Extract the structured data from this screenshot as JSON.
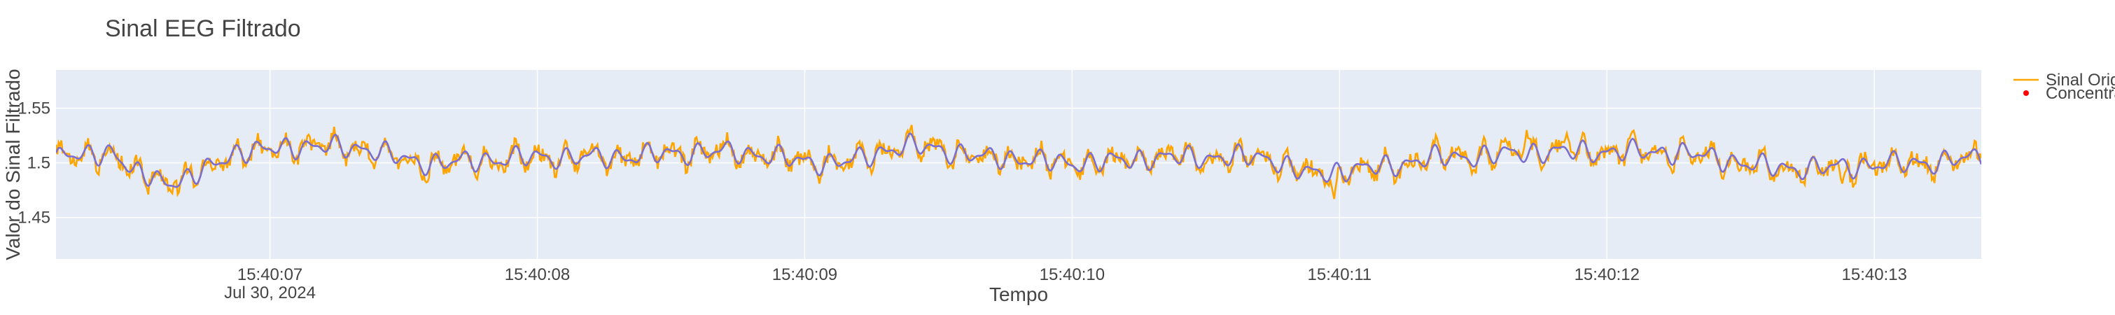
{
  "chart_data": {
    "type": "line",
    "title": "Sinal EEG Filtrado",
    "xlabel": "Tempo",
    "ylabel": "Valor do Sinal Filtrado",
    "x_start": "2024-07-30 15:40:06.200",
    "x_end": "2024-07-30 15:40:13.400",
    "x_ticks": [
      {
        "time": "15:40:07",
        "date": "Jul 30, 2024"
      },
      {
        "time": "15:40:08",
        "date": ""
      },
      {
        "time": "15:40:09",
        "date": ""
      },
      {
        "time": "15:40:10",
        "date": ""
      },
      {
        "time": "15:40:11",
        "date": ""
      },
      {
        "time": "15:40:12",
        "date": ""
      },
      {
        "time": "15:40:13",
        "date": ""
      }
    ],
    "y_ticks": [
      "1.45",
      "1.5",
      "1.55"
    ],
    "ylim": [
      1.412,
      1.585
    ],
    "grid": true,
    "legend_position": "top-right",
    "series": [
      {
        "name": "Sinal Original",
        "color": "#ffa500",
        "mode": "lines",
        "key_points": [
          {
            "t": 0.0,
            "v": 1.505
          },
          {
            "t": 0.2,
            "v": 1.51
          },
          {
            "t": 0.3,
            "v": 1.49
          },
          {
            "t": 0.45,
            "v": 1.483
          },
          {
            "t": 0.7,
            "v": 1.51
          },
          {
            "t": 0.9,
            "v": 1.515
          },
          {
            "t": 1.1,
            "v": 1.514
          },
          {
            "t": 1.4,
            "v": 1.5
          },
          {
            "t": 1.8,
            "v": 1.505
          },
          {
            "t": 2.0,
            "v": 1.505
          },
          {
            "t": 2.5,
            "v": 1.51
          },
          {
            "t": 2.9,
            "v": 1.5
          },
          {
            "t": 3.2,
            "v": 1.515
          },
          {
            "t": 3.5,
            "v": 1.505
          },
          {
            "t": 3.8,
            "v": 1.5
          },
          {
            "t": 4.2,
            "v": 1.505
          },
          {
            "t": 4.5,
            "v": 1.505
          },
          {
            "t": 4.7,
            "v": 1.49
          },
          {
            "t": 4.9,
            "v": 1.495
          },
          {
            "t": 5.2,
            "v": 1.505
          },
          {
            "t": 5.6,
            "v": 1.51
          },
          {
            "t": 6.0,
            "v": 1.51
          },
          {
            "t": 6.5,
            "v": 1.495
          },
          {
            "t": 7.0,
            "v": 1.5
          },
          {
            "t": 7.2,
            "v": 1.505
          }
        ],
        "extra_points": [
          {
            "t": 4.78,
            "v": 1.467
          },
          {
            "t": 5.42,
            "v": 1.522
          },
          {
            "t": 5.5,
            "v": 1.53
          },
          {
            "t": 5.65,
            "v": 1.527
          },
          {
            "t": 6.68,
            "v": 1.481
          }
        ]
      },
      {
        "name": "Concentrado",
        "color": "#ff0000",
        "mode": "markers",
        "key_points": []
      },
      {
        "name": "",
        "color": "#7a6fd0",
        "mode": "lines",
        "key_points": [
          {
            "t": 0.0,
            "v": 1.505
          },
          {
            "t": 0.2,
            "v": 1.51
          },
          {
            "t": 0.3,
            "v": 1.49
          },
          {
            "t": 0.45,
            "v": 1.483
          },
          {
            "t": 0.7,
            "v": 1.51
          },
          {
            "t": 0.9,
            "v": 1.515
          },
          {
            "t": 1.1,
            "v": 1.514
          },
          {
            "t": 1.4,
            "v": 1.5
          },
          {
            "t": 1.8,
            "v": 1.505
          },
          {
            "t": 2.0,
            "v": 1.505
          },
          {
            "t": 2.5,
            "v": 1.51
          },
          {
            "t": 2.9,
            "v": 1.5
          },
          {
            "t": 3.2,
            "v": 1.515
          },
          {
            "t": 3.5,
            "v": 1.505
          },
          {
            "t": 3.8,
            "v": 1.5
          },
          {
            "t": 4.2,
            "v": 1.505
          },
          {
            "t": 4.5,
            "v": 1.505
          },
          {
            "t": 4.7,
            "v": 1.49
          },
          {
            "t": 4.9,
            "v": 1.495
          },
          {
            "t": 5.2,
            "v": 1.505
          },
          {
            "t": 5.6,
            "v": 1.51
          },
          {
            "t": 6.0,
            "v": 1.51
          },
          {
            "t": 6.5,
            "v": 1.495
          },
          {
            "t": 7.0,
            "v": 1.5
          },
          {
            "t": 7.2,
            "v": 1.505
          }
        ]
      }
    ]
  }
}
